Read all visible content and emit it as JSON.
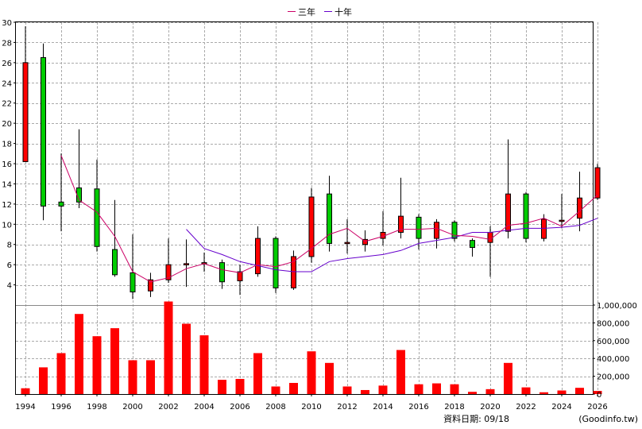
{
  "chart_data": {
    "type": "candlestick",
    "legend": [
      {
        "name": "三年",
        "color": "#cc0066"
      },
      {
        "name": "十年",
        "color": "#6600cc"
      }
    ],
    "years": [
      1994,
      1995,
      1996,
      1997,
      1998,
      1999,
      2000,
      2001,
      2002,
      2003,
      2004,
      2005,
      2006,
      2007,
      2008,
      2009,
      2010,
      2011,
      2012,
      2013,
      2014,
      2015,
      2016,
      2017,
      2018,
      2019,
      2020,
      2021,
      2022,
      2023,
      2024,
      2025,
      2026
    ],
    "candles": [
      {
        "open": 16.2,
        "close": 26.0,
        "high": 29.6,
        "low": 16.2
      },
      {
        "open": 26.5,
        "close": 11.8,
        "high": 27.9,
        "low": 10.4
      },
      {
        "open": 12.2,
        "close": 11.8,
        "high": 17.0,
        "low": 9.3
      },
      {
        "open": 13.6,
        "close": 12.2,
        "high": 19.4,
        "low": 11.6
      },
      {
        "open": 13.5,
        "close": 7.8,
        "high": 16.4,
        "low": 7.3
      },
      {
        "open": 7.5,
        "close": 5.0,
        "high": 12.4,
        "low": 4.8
      },
      {
        "open": 5.2,
        "close": 3.3,
        "high": 9.0,
        "low": 2.6
      },
      {
        "open": 3.4,
        "close": 4.5,
        "high": 5.2,
        "low": 2.8
      },
      {
        "open": 4.5,
        "close": 6.0,
        "high": 8.6,
        "low": 4.2
      },
      {
        "open": 6.0,
        "close": 6.1,
        "high": 8.5,
        "low": 3.8
      },
      {
        "open": 6.1,
        "close": 6.2,
        "high": 7.2,
        "low": 5.3
      },
      {
        "open": 6.2,
        "close": 4.3,
        "high": 6.5,
        "low": 3.6
      },
      {
        "open": 4.4,
        "close": 5.3,
        "high": 6.0,
        "low": 3.0
      },
      {
        "open": 5.1,
        "close": 8.6,
        "high": 9.8,
        "low": 4.8
      },
      {
        "open": 8.6,
        "close": 3.7,
        "high": 8.8,
        "low": 3.2
      },
      {
        "open": 3.7,
        "close": 6.8,
        "high": 7.4,
        "low": 3.5
      },
      {
        "open": 6.8,
        "close": 12.7,
        "high": 13.6,
        "low": 6.2
      },
      {
        "open": 13.0,
        "close": 8.1,
        "high": 14.8,
        "low": 7.3
      },
      {
        "open": 8.1,
        "close": 8.2,
        "high": 10.5,
        "low": 7.1
      },
      {
        "open": 8.0,
        "close": 8.5,
        "high": 9.4,
        "low": 7.3
      },
      {
        "open": 8.6,
        "close": 9.2,
        "high": 11.3,
        "low": 7.9
      },
      {
        "open": 9.2,
        "close": 10.8,
        "high": 14.6,
        "low": 8.6
      },
      {
        "open": 10.7,
        "close": 8.6,
        "high": 11.0,
        "low": 7.5
      },
      {
        "open": 8.6,
        "close": 10.2,
        "high": 10.5,
        "low": 7.6
      },
      {
        "open": 10.2,
        "close": 8.6,
        "high": 10.4,
        "low": 8.3
      },
      {
        "open": 8.4,
        "close": 7.7,
        "high": 8.6,
        "low": 6.8
      },
      {
        "open": 8.2,
        "close": 9.2,
        "high": 9.8,
        "low": 4.8
      },
      {
        "open": 9.3,
        "close": 13.0,
        "high": 18.4,
        "low": 8.6
      },
      {
        "open": 13.0,
        "close": 8.6,
        "high": 13.2,
        "low": 8.2
      },
      {
        "open": 8.6,
        "close": 10.5,
        "high": 11.0,
        "low": 8.3
      },
      {
        "open": 10.3,
        "close": 10.4,
        "high": 13.0,
        "low": 9.6
      },
      {
        "open": 10.6,
        "close": 12.6,
        "high": 15.2,
        "low": 9.3
      },
      {
        "open": 12.6,
        "close": 15.6,
        "high": 16.0,
        "low": 12.4
      }
    ],
    "ma3": [
      null,
      null,
      16.8,
      12.4,
      11.2,
      8.8,
      5.3,
      4.3,
      4.7,
      5.6,
      6.1,
      5.5,
      5.2,
      6.0,
      5.8,
      6.3,
      7.6,
      9.0,
      9.6,
      8.3,
      8.8,
      9.5,
      9.5,
      9.6,
      8.9,
      8.8,
      8.5,
      9.9,
      10.1,
      10.6,
      9.8,
      11.3,
      12.9
    ],
    "ma10": [
      null,
      null,
      null,
      null,
      null,
      null,
      null,
      null,
      null,
      9.5,
      7.6,
      7.0,
      6.3,
      5.9,
      5.5,
      5.3,
      5.3,
      6.3,
      6.6,
      6.8,
      7.0,
      7.4,
      8.1,
      8.4,
      8.7,
      9.2,
      9.2,
      9.4,
      9.6,
      9.6,
      9.7,
      9.9,
      10.6
    ],
    "volumes": [
      65000,
      300000,
      460000,
      900000,
      650000,
      740000,
      380000,
      380000,
      1040000,
      790000,
      660000,
      160000,
      170000,
      460000,
      85000,
      125000,
      480000,
      350000,
      85000,
      45000,
      95000,
      495000,
      110000,
      120000,
      110000,
      25000,
      55000,
      350000,
      75000,
      20000,
      40000,
      70000,
      35000
    ],
    "price_axis": {
      "min": 2,
      "max": 30,
      "ticks": [
        4,
        6,
        8,
        10,
        12,
        14,
        16,
        18,
        20,
        22,
        24,
        26,
        28,
        30
      ]
    },
    "volume_axis": {
      "min": 0,
      "max": 1000000,
      "tick_values": [
        0,
        200000,
        400000,
        600000,
        800000,
        1000000
      ],
      "tick_labels": [
        "0",
        "200,000",
        "400,000",
        "600,000",
        "800,000",
        "1,000,000"
      ]
    },
    "x_tick_labels": [
      "1994",
      "1996",
      "1998",
      "2000",
      "2002",
      "2004",
      "2006",
      "2008",
      "2010",
      "2012",
      "2014",
      "2016",
      "2018",
      "2020",
      "2022",
      "2024",
      "2026"
    ],
    "up_color": "#ff0000",
    "down_color": "#00cc00",
    "volume_color": "#ff0000",
    "grid": true
  },
  "footer": {
    "label": "資料日期: 09/18",
    "source": "(Goodinfo.tw)"
  }
}
